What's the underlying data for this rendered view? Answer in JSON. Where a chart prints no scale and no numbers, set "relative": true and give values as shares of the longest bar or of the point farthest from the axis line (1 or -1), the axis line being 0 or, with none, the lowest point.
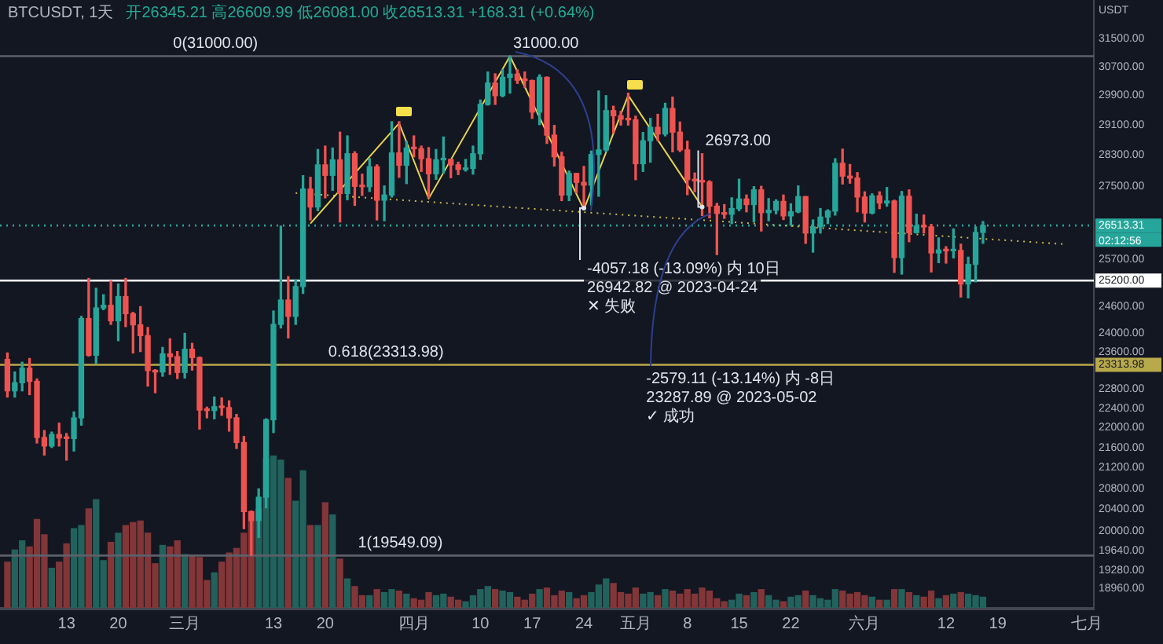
{
  "chart_data": [
    {
      "type": "candlestick",
      "title": "BTCUSDT, 1天",
      "subtitle": "开26345.21 高26609.99 低26081.00 收26513.31 +168.31 (+0.64%)",
      "ylabel": "USDT",
      "log": true,
      "x": [
        "2023-02-05",
        "2023-02-06",
        "2023-02-07",
        "2023-02-08",
        "2023-02-09",
        "2023-02-10",
        "2023-02-11",
        "2023-02-12",
        "2023-02-13",
        "2023-02-14",
        "2023-02-15",
        "2023-02-16",
        "2023-02-17",
        "2023-02-18",
        "2023-02-19",
        "2023-02-20",
        "2023-02-21",
        "2023-02-22",
        "2023-02-23",
        "2023-02-24",
        "2023-02-25",
        "2023-02-26",
        "2023-02-27",
        "2023-02-28",
        "2023-03-01",
        "2023-03-02",
        "2023-03-03",
        "2023-03-04",
        "2023-03-05",
        "2023-03-06",
        "2023-03-07",
        "2023-03-08",
        "2023-03-09",
        "2023-03-10",
        "2023-03-11",
        "2023-03-12",
        "2023-03-13",
        "2023-03-14",
        "2023-03-15",
        "2023-03-16",
        "2023-03-17",
        "2023-03-18",
        "2023-03-19",
        "2023-03-20",
        "2023-03-21",
        "2023-03-22",
        "2023-03-23",
        "2023-03-24",
        "2023-03-25",
        "2023-03-26",
        "2023-03-27",
        "2023-03-28",
        "2023-03-29",
        "2023-03-30",
        "2023-03-31",
        "2023-04-01",
        "2023-04-02",
        "2023-04-03",
        "2023-04-04",
        "2023-04-05",
        "2023-04-06",
        "2023-04-07",
        "2023-04-08",
        "2023-04-09",
        "2023-04-10",
        "2023-04-11",
        "2023-04-12",
        "2023-04-13",
        "2023-04-14",
        "2023-04-15",
        "2023-04-16",
        "2023-04-17",
        "2023-04-18",
        "2023-04-19",
        "2023-04-20",
        "2023-04-21",
        "2023-04-22",
        "2023-04-23",
        "2023-04-24",
        "2023-04-25",
        "2023-04-26",
        "2023-04-27",
        "2023-04-28",
        "2023-04-29",
        "2023-04-30",
        "2023-05-01",
        "2023-05-02",
        "2023-05-03",
        "2023-05-04",
        "2023-05-05",
        "2023-05-06",
        "2023-05-07",
        "2023-05-08",
        "2023-05-09",
        "2023-05-10",
        "2023-05-11",
        "2023-05-12",
        "2023-05-13",
        "2023-05-14",
        "2023-05-15",
        "2023-05-16",
        "2023-05-17",
        "2023-05-18",
        "2023-05-19",
        "2023-05-20",
        "2023-05-21",
        "2023-05-22",
        "2023-05-23",
        "2023-05-24",
        "2023-05-25",
        "2023-05-26",
        "2023-05-27",
        "2023-05-28",
        "2023-05-29",
        "2023-05-30",
        "2023-05-31",
        "2023-06-01",
        "2023-06-02",
        "2023-06-03",
        "2023-06-04",
        "2023-06-05",
        "2023-06-06",
        "2023-06-07",
        "2023-06-08",
        "2023-06-09",
        "2023-06-10",
        "2023-06-11",
        "2023-06-12",
        "2023-06-13",
        "2023-06-14",
        "2023-06-15",
        "2023-06-16",
        "2023-06-17"
      ],
      "ohlc": [
        [
          23430,
          23570,
          22630,
          22760
        ],
        [
          22760,
          23160,
          22630,
          22930
        ],
        [
          22930,
          23370,
          22760,
          23240
        ],
        [
          23240,
          23450,
          22680,
          22960
        ],
        [
          22960,
          23010,
          21690,
          21800
        ],
        [
          21800,
          21940,
          21450,
          21630
        ],
        [
          21630,
          21910,
          21600,
          21860
        ],
        [
          21860,
          22090,
          21630,
          21790
        ],
        [
          21790,
          21880,
          21350,
          21780
        ],
        [
          21780,
          22320,
          21530,
          22200
        ],
        [
          22200,
          24380,
          22050,
          24330
        ],
        [
          24330,
          25250,
          23500,
          23520
        ],
        [
          23520,
          25020,
          23340,
          24570
        ],
        [
          24570,
          24870,
          24530,
          24630
        ],
        [
          24630,
          25190,
          24200,
          24280
        ],
        [
          24280,
          25120,
          23840,
          24830
        ],
        [
          24830,
          25250,
          24150,
          24440
        ],
        [
          24440,
          24470,
          23570,
          24190
        ],
        [
          24190,
          24600,
          23600,
          23950
        ],
        [
          23950,
          24130,
          22860,
          23190
        ],
        [
          23190,
          23210,
          22720,
          23160
        ],
        [
          23160,
          23690,
          23070,
          23550
        ],
        [
          23550,
          23880,
          23110,
          23490
        ],
        [
          23490,
          23600,
          23020,
          23150
        ],
        [
          23150,
          24000,
          23030,
          23650
        ],
        [
          23650,
          23780,
          23200,
          23470
        ],
        [
          23470,
          23480,
          21970,
          22360
        ],
        [
          22360,
          22420,
          22200,
          22350
        ],
        [
          22350,
          22630,
          22180,
          22430
        ],
        [
          22430,
          22610,
          22250,
          22410
        ],
        [
          22410,
          22550,
          21930,
          22200
        ],
        [
          22200,
          22270,
          21580,
          21700
        ],
        [
          21700,
          21820,
          20040,
          20360
        ],
        [
          20360,
          20370,
          19549.09,
          20190
        ],
        [
          20190,
          20790,
          19880,
          20630
        ],
        [
          20630,
          22180,
          20430,
          22160
        ],
        [
          22160,
          24500,
          21900,
          24200
        ],
        [
          24200,
          26500,
          24120,
          24750
        ],
        [
          24750,
          25290,
          23900,
          24380
        ],
        [
          24380,
          25220,
          24200,
          25060
        ],
        [
          25060,
          27760,
          24900,
          27420
        ],
        [
          27420,
          27720,
          26650,
          26970
        ],
        [
          26970,
          28440,
          26880,
          28040
        ],
        [
          28040,
          28530,
          27200,
          27770
        ],
        [
          27770,
          28480,
          27390,
          28170
        ],
        [
          28170,
          28900,
          26600,
          27310
        ],
        [
          27310,
          28800,
          27150,
          28330
        ],
        [
          28330,
          28380,
          27010,
          27490
        ],
        [
          27490,
          27800,
          27260,
          27480
        ],
        [
          27480,
          28200,
          27360,
          27990
        ],
        [
          27990,
          28040,
          26650,
          27140
        ],
        [
          27140,
          27500,
          26630,
          27270
        ],
        [
          27270,
          29180,
          27220,
          28350
        ],
        [
          28350,
          29180,
          27720,
          28030
        ],
        [
          28030,
          28650,
          27560,
          28480
        ],
        [
          28480,
          28800,
          28250,
          28460
        ],
        [
          28460,
          28530,
          27870,
          28200
        ],
        [
          28200,
          28490,
          27200,
          27810
        ],
        [
          27810,
          28440,
          27670,
          28170
        ],
        [
          28170,
          28770,
          27830,
          28180
        ],
        [
          28180,
          28190,
          27710,
          28040
        ],
        [
          28040,
          28110,
          27790,
          27920
        ],
        [
          27920,
          28180,
          27880,
          27950
        ],
        [
          27950,
          28530,
          27800,
          28330
        ],
        [
          28330,
          29770,
          28180,
          29650
        ],
        [
          29650,
          30550,
          29630,
          30240
        ],
        [
          30240,
          30500,
          29650,
          29890
        ],
        [
          29890,
          30620,
          29860,
          30400
        ],
        [
          30400,
          31000,
          29960,
          30490
        ],
        [
          30490,
          30610,
          30230,
          30320
        ],
        [
          30320,
          30550,
          30120,
          30310
        ],
        [
          30310,
          30320,
          29270,
          29440
        ],
        [
          29440,
          30470,
          29100,
          30400
        ],
        [
          30400,
          30410,
          28600,
          28820
        ],
        [
          28820,
          29080,
          28010,
          28250
        ],
        [
          28250,
          28370,
          27130,
          27270
        ],
        [
          27270,
          27880,
          27130,
          27820
        ],
        [
          27820,
          27820,
          27330,
          27590
        ],
        [
          27590,
          28000,
          26942.82,
          27520
        ],
        [
          27520,
          28400,
          27020,
          28310
        ],
        [
          28310,
          30020,
          27240,
          28430
        ],
        [
          28430,
          29890,
          28380,
          29480
        ],
        [
          29480,
          29600,
          28880,
          29340
        ],
        [
          29340,
          29460,
          29090,
          29250
        ],
        [
          29250,
          29960,
          29090,
          29230
        ],
        [
          29230,
          29330,
          27660,
          28070
        ],
        [
          28070,
          28890,
          27870,
          28670
        ],
        [
          28670,
          29270,
          28110,
          29030
        ],
        [
          29030,
          29380,
          28670,
          28850
        ],
        [
          28850,
          29680,
          28800,
          29540
        ],
        [
          29540,
          29850,
          28380,
          28900
        ],
        [
          28900,
          29170,
          28390,
          28430
        ],
        [
          28430,
          28660,
          27280,
          27660
        ],
        [
          27660,
          27830,
          27350,
          27630
        ],
        [
          27630,
          28330,
          26760,
          27600
        ],
        [
          27600,
          27630,
          26700,
          26990
        ],
        [
          26990,
          27060,
          25810,
          26810
        ],
        [
          26810,
          27030,
          26690,
          26790
        ],
        [
          26790,
          27200,
          26560,
          26930
        ],
        [
          26930,
          27670,
          26880,
          27170
        ],
        [
          27170,
          27270,
          26850,
          27030
        ],
        [
          27030,
          27480,
          26600,
          27400
        ],
        [
          27400,
          27490,
          26380,
          26830
        ],
        [
          26830,
          27180,
          26630,
          26890
        ],
        [
          26890,
          27150,
          26800,
          27110
        ],
        [
          27110,
          27270,
          26660,
          26750
        ],
        [
          26750,
          27050,
          26520,
          26850
        ],
        [
          26850,
          27500,
          26830,
          27230
        ],
        [
          27230,
          27230,
          26080,
          26330
        ],
        [
          26330,
          26650,
          25870,
          26480
        ],
        [
          26480,
          26930,
          26330,
          26720
        ],
        [
          26720,
          26900,
          26560,
          26870
        ],
        [
          26870,
          28200,
          26770,
          28080
        ],
        [
          28080,
          28450,
          27550,
          27750
        ],
        [
          27750,
          28050,
          27570,
          27700
        ],
        [
          27700,
          27840,
          26850,
          27220
        ],
        [
          27220,
          27350,
          26600,
          26820
        ],
        [
          26820,
          27300,
          26800,
          27250
        ],
        [
          27250,
          27350,
          26930,
          27070
        ],
        [
          27070,
          27460,
          26990,
          27120
        ],
        [
          27120,
          27140,
          25390,
          25740
        ],
        [
          25740,
          27360,
          25350,
          27240
        ],
        [
          27240,
          27400,
          26120,
          26340
        ],
        [
          26340,
          26790,
          26330,
          26500
        ],
        [
          26500,
          26770,
          26330,
          26480
        ],
        [
          26480,
          26540,
          25400,
          25850
        ],
        [
          25850,
          26210,
          25620,
          25920
        ],
        [
          25920,
          26000,
          25610,
          25900
        ],
        [
          25900,
          26430,
          25730,
          25910
        ],
        [
          25910,
          26060,
          24820,
          25120
        ],
        [
          25120,
          25750,
          24800,
          25580
        ],
        [
          25580,
          26480,
          25170,
          26345.21
        ],
        [
          26345.21,
          26609.99,
          26081,
          26513.31
        ]
      ],
      "colors": [
        "#ef5350",
        "#26a69a",
        "#26a69a",
        "#ef5350",
        "#ef5350",
        "#ef5350",
        "#26a69a",
        "#ef5350",
        "#ef5350",
        "#26a69a",
        "#26a69a",
        "#ef5350",
        "#26a69a",
        "#26a69a",
        "#ef5350",
        "#26a69a",
        "#ef5350",
        "#ef5350",
        "#ef5350",
        "#ef5350",
        "#ef5350",
        "#26a69a",
        "#ef5350",
        "#ef5350",
        "#26a69a",
        "#ef5350",
        "#ef5350",
        "#ef5350",
        "#26a69a",
        "#ef5350",
        "#ef5350",
        "#ef5350",
        "#ef5350",
        "#ef5350",
        "#26a69a",
        "#26a69a",
        "#26a69a",
        "#26a69a",
        "#ef5350",
        "#26a69a",
        "#26a69a",
        "#ef5350",
        "#26a69a",
        "#ef5350",
        "#26a69a",
        "#ef5350",
        "#26a69a",
        "#ef5350",
        "#ef5350",
        "#26a69a",
        "#ef5350",
        "#26a69a",
        "#26a69a",
        "#ef5350",
        "#26a69a",
        "#ef5350",
        "#ef5350",
        "#ef5350",
        "#26a69a",
        "#26a69a",
        "#ef5350",
        "#ef5350",
        "#26a69a",
        "#26a69a",
        "#26a69a",
        "#26a69a",
        "#ef5350",
        "#26a69a",
        "#26a69a",
        "#ef5350",
        "#ef5350",
        "#ef5350",
        "#26a69a",
        "#ef5350",
        "#ef5350",
        "#ef5350",
        "#26a69a",
        "#ef5350",
        "#ef5350",
        "#26a69a",
        "#26a69a",
        "#26a69a",
        "#ef5350",
        "#ef5350",
        "#ef5350",
        "#ef5350",
        "#26a69a",
        "#26a69a",
        "#ef5350",
        "#26a69a",
        "#ef5350",
        "#ef5350",
        "#ef5350",
        "#ef5350",
        "#ef5350",
        "#ef5350",
        "#ef5350",
        "#ef5350",
        "#26a69a",
        "#26a69a",
        "#ef5350",
        "#26a69a",
        "#ef5350",
        "#26a69a",
        "#26a69a",
        "#ef5350",
        "#26a69a",
        "#26a69a",
        "#ef5350",
        "#26a69a",
        "#26a69a",
        "#26a69a",
        "#26a69a",
        "#ef5350",
        "#ef5350",
        "#ef5350",
        "#ef5350",
        "#26a69a",
        "#ef5350",
        "#26a69a",
        "#ef5350",
        "#26a69a",
        "#ef5350",
        "#26a69a",
        "#ef5350",
        "#ef5350",
        "#26a69a",
        "#ef5350",
        "#26a69a",
        "#ef5350",
        "#26a69a",
        "#26a69a",
        "#26a69a"
      ],
      "series": [
        {
          "type": "line",
          "color": "#e8d44d",
          "x": [
            "2023-03-18",
            "2023-03-30",
            "2023-04-03",
            "2023-04-14",
            "2023-04-24",
            "2023-04-30",
            "2023-05-10"
          ],
          "values": [
            26560,
            29140,
            27180,
            31000,
            26910,
            29900,
            26973
          ]
        },
        {
          "type": "line",
          "color": "#c9b84a",
          "line_style": "dotted",
          "x": [
            "2023-03-16",
            "2023-06-28"
          ],
          "values": [
            27320,
            26060
          ]
        }
      ],
      "xlim": [
        "2023-02-04",
        "2023-07-02"
      ],
      "xticks": [
        {
          "value": "2023-02-13",
          "label": "13"
        },
        {
          "value": "2023-02-20",
          "label": "20"
        },
        {
          "value": "2023-03-01",
          "label": "三月"
        },
        {
          "value": "2023-03-13",
          "label": "13"
        },
        {
          "value": "2023-03-20",
          "label": "20"
        },
        {
          "value": "2023-04-01",
          "label": "四月"
        },
        {
          "value": "2023-04-10",
          "label": "10"
        },
        {
          "value": "2023-04-17",
          "label": "17"
        },
        {
          "value": "2023-04-24",
          "label": "24"
        },
        {
          "value": "2023-05-01",
          "label": "五月"
        },
        {
          "value": "2023-05-08",
          "label": "8"
        },
        {
          "value": "2023-05-15",
          "label": "15"
        },
        {
          "value": "2023-05-22",
          "label": "22"
        },
        {
          "value": "2023-06-01",
          "label": "六月"
        },
        {
          "value": "2023-06-12",
          "label": "12"
        },
        {
          "value": "2023-06-19",
          "label": "19"
        },
        {
          "value": "2023-07-01",
          "label": "七月"
        }
      ],
      "ylim": [
        18600,
        32650
      ],
      "yticks": [
        {
          "value": 31500,
          "label": "31500.00"
        },
        {
          "value": 30700,
          "label": "30700.00"
        },
        {
          "value": 29900,
          "label": "29900.00"
        },
        {
          "value": 29100,
          "label": "29100.00"
        },
        {
          "value": 28300,
          "label": "28300.00"
        },
        {
          "value": 27500,
          "label": "27500.00"
        },
        {
          "value": 25700,
          "label": "25700.00"
        },
        {
          "value": 24600,
          "label": "24600.00"
        },
        {
          "value": 24000,
          "label": "24000.00"
        },
        {
          "value": 23600,
          "label": "23600.00"
        },
        {
          "value": 22800,
          "label": "22800.00"
        },
        {
          "value": 22400,
          "label": "22400.00"
        },
        {
          "value": 22000,
          "label": "22000.00"
        },
        {
          "value": 21600,
          "label": "21600.00"
        },
        {
          "value": 21200,
          "label": "21200.00"
        },
        {
          "value": 20800,
          "label": "20800.00"
        },
        {
          "value": 20400,
          "label": "20400.00"
        },
        {
          "value": 20000,
          "label": "20000.00"
        },
        {
          "value": 19640,
          "label": "19640.00"
        },
        {
          "value": 19280,
          "label": "19280.00"
        },
        {
          "value": 18960,
          "label": "18960.00"
        }
      ],
      "ref_lines": [
        {
          "axis": "y",
          "value": 26513.31,
          "label": "26513.31",
          "color": "#26a69a",
          "line_style": "dotted"
        },
        {
          "axis": "y",
          "value": 31000,
          "color": "#5d606b"
        },
        {
          "axis": "y",
          "value": 25200,
          "label": "25200.00",
          "color": "#ffffff"
        },
        {
          "axis": "y",
          "value": 23313.98,
          "label": "23313.98",
          "color": "#b8a94a"
        },
        {
          "axis": "y",
          "value": 19549.09,
          "color": "#5d606b"
        }
      ],
      "annotations": [
        "02:12:56",
        {
          "text": "0(31000.00)",
          "x": "2023-02-27",
          "y": 31000
        },
        {
          "text": "0.618(23313.98)",
          "x": "2023-03-20",
          "y": 23313.98
        },
        {
          "text": "1(19549.09)",
          "x": "2023-03-24",
          "y": 19549.09
        },
        {
          "text": "31000.00",
          "x": "2023-04-14",
          "y": 31000
        },
        {
          "text": "-4057.18 (-13.09%) 内 10日\n26942.82 @ 2023-04-24\n✕ 失败",
          "x": "2023-04-24",
          "y": 26942.82
        },
        {
          "text": "26973.00",
          "x": "2023-05-10",
          "y": 26973
        },
        {
          "text": "-2579.11 (-13.14%) 内 -8日\n23287.89 @ 2023-05-02\n✓ 成功",
          "x": "2023-05-02",
          "y": 23313.98
        }
      ]
    },
    {
      "type": "bar",
      "relative": true,
      "tick_labels": false,
      "xlim": [
        "2023-02-04",
        "2023-07-02"
      ],
      "x": [
        "2023-02-05",
        "2023-02-06",
        "2023-02-07",
        "2023-02-08",
        "2023-02-09",
        "2023-02-10",
        "2023-02-11",
        "2023-02-12",
        "2023-02-13",
        "2023-02-14",
        "2023-02-15",
        "2023-02-16",
        "2023-02-17",
        "2023-02-18",
        "2023-02-19",
        "2023-02-20",
        "2023-02-21",
        "2023-02-22",
        "2023-02-23",
        "2023-02-24",
        "2023-02-25",
        "2023-02-26",
        "2023-02-27",
        "2023-02-28",
        "2023-03-01",
        "2023-03-02",
        "2023-03-03",
        "2023-03-04",
        "2023-03-05",
        "2023-03-06",
        "2023-03-07",
        "2023-03-08",
        "2023-03-09",
        "2023-03-10",
        "2023-03-11",
        "2023-03-12",
        "2023-03-13",
        "2023-03-14",
        "2023-03-15",
        "2023-03-16",
        "2023-03-17",
        "2023-03-18",
        "2023-03-19",
        "2023-03-20",
        "2023-03-21",
        "2023-03-22",
        "2023-03-23",
        "2023-03-24",
        "2023-03-25",
        "2023-03-26",
        "2023-03-27",
        "2023-03-28",
        "2023-03-29",
        "2023-03-30",
        "2023-03-31",
        "2023-04-01",
        "2023-04-02",
        "2023-04-03",
        "2023-04-04",
        "2023-04-05",
        "2023-04-06",
        "2023-04-07",
        "2023-04-08",
        "2023-04-09",
        "2023-04-10",
        "2023-04-11",
        "2023-04-12",
        "2023-04-13",
        "2023-04-14",
        "2023-04-15",
        "2023-04-16",
        "2023-04-17",
        "2023-04-18",
        "2023-04-19",
        "2023-04-20",
        "2023-04-21",
        "2023-04-22",
        "2023-04-23",
        "2023-04-24",
        "2023-04-25",
        "2023-04-26",
        "2023-04-27",
        "2023-04-28",
        "2023-04-29",
        "2023-04-30",
        "2023-05-01",
        "2023-05-02",
        "2023-05-03",
        "2023-05-04",
        "2023-05-05",
        "2023-05-06",
        "2023-05-07",
        "2023-05-08",
        "2023-05-09",
        "2023-05-10",
        "2023-05-11",
        "2023-05-12",
        "2023-05-13",
        "2023-05-14",
        "2023-05-15",
        "2023-05-16",
        "2023-05-17",
        "2023-05-18",
        "2023-05-19",
        "2023-05-20",
        "2023-05-21",
        "2023-05-22",
        "2023-05-23",
        "2023-05-24",
        "2023-05-25",
        "2023-05-26",
        "2023-05-27",
        "2023-05-28",
        "2023-05-29",
        "2023-05-30",
        "2023-05-31",
        "2023-06-01",
        "2023-06-02",
        "2023-06-03",
        "2023-06-04",
        "2023-06-05",
        "2023-06-06",
        "2023-06-07",
        "2023-06-08",
        "2023-06-09",
        "2023-06-10",
        "2023-06-11",
        "2023-06-12",
        "2023-06-13",
        "2023-06-14",
        "2023-06-15",
        "2023-06-16",
        "2023-06-17"
      ],
      "values": [
        0.3,
        0.38,
        0.44,
        0.4,
        0.58,
        0.48,
        0.26,
        0.3,
        0.42,
        0.52,
        0.54,
        0.65,
        0.71,
        0.31,
        0.43,
        0.49,
        0.54,
        0.56,
        0.57,
        0.49,
        0.29,
        0.41,
        0.4,
        0.44,
        0.35,
        0.34,
        0.33,
        0.18,
        0.23,
        0.3,
        0.36,
        0.39,
        0.49,
        0.63,
        0.65,
        0.98,
        1,
        0.97,
        0.85,
        0.7,
        0.9,
        0.54,
        0.54,
        0.69,
        0.61,
        0.32,
        0.19,
        0.14,
        0.08,
        0.08,
        0.12,
        0.1,
        0.12,
        0.11,
        0.09,
        0.06,
        0.05,
        0.1,
        0.08,
        0.09,
        0.07,
        0.05,
        0.04,
        0.08,
        0.12,
        0.14,
        0.12,
        0.11,
        0.1,
        0.07,
        0.05,
        0.09,
        0.12,
        0.13,
        0.08,
        0.11,
        0.1,
        0.06,
        0.08,
        0.1,
        0.15,
        0.19,
        0.16,
        0.1,
        0.09,
        0.13,
        0.09,
        0.1,
        0.08,
        0.12,
        0.11,
        0.09,
        0.12,
        0.09,
        0.13,
        0.11,
        0.06,
        0.04,
        0.05,
        0.09,
        0.08,
        0.1,
        0.12,
        0.08,
        0.05,
        0.04,
        0.07,
        0.08,
        0.11,
        0.08,
        0.06,
        0.05,
        0.12,
        0.11,
        0.09,
        0.1,
        0.08,
        0.07,
        0.05,
        0.05,
        0.12,
        0.12,
        0.1,
        0.08,
        0.07,
        0.11,
        0.06,
        0.08,
        0.09,
        0.1,
        0.09,
        0.08,
        0.07
      ],
      "colors": [
        "#833638",
        "#22625c",
        "#22625c",
        "#833638",
        "#833638",
        "#833638",
        "#22625c",
        "#833638",
        "#833638",
        "#22625c",
        "#22625c",
        "#833638",
        "#22625c",
        "#22625c",
        "#833638",
        "#22625c",
        "#833638",
        "#833638",
        "#833638",
        "#833638",
        "#833638",
        "#22625c",
        "#833638",
        "#833638",
        "#22625c",
        "#833638",
        "#833638",
        "#833638",
        "#22625c",
        "#833638",
        "#833638",
        "#833638",
        "#833638",
        "#833638",
        "#22625c",
        "#22625c",
        "#22625c",
        "#22625c",
        "#833638",
        "#22625c",
        "#22625c",
        "#833638",
        "#22625c",
        "#833638",
        "#22625c",
        "#833638",
        "#22625c",
        "#833638",
        "#833638",
        "#22625c",
        "#833638",
        "#22625c",
        "#22625c",
        "#833638",
        "#22625c",
        "#833638",
        "#833638",
        "#833638",
        "#22625c",
        "#22625c",
        "#833638",
        "#833638",
        "#22625c",
        "#22625c",
        "#22625c",
        "#22625c",
        "#833638",
        "#22625c",
        "#22625c",
        "#833638",
        "#833638",
        "#833638",
        "#22625c",
        "#833638",
        "#833638",
        "#833638",
        "#22625c",
        "#833638",
        "#833638",
        "#22625c",
        "#22625c",
        "#22625c",
        "#833638",
        "#833638",
        "#833638",
        "#833638",
        "#22625c",
        "#22625c",
        "#833638",
        "#22625c",
        "#833638",
        "#833638",
        "#833638",
        "#833638",
        "#833638",
        "#833638",
        "#833638",
        "#833638",
        "#22625c",
        "#22625c",
        "#833638",
        "#22625c",
        "#833638",
        "#22625c",
        "#22625c",
        "#833638",
        "#22625c",
        "#22625c",
        "#833638",
        "#22625c",
        "#22625c",
        "#22625c",
        "#22625c",
        "#833638",
        "#833638",
        "#833638",
        "#833638",
        "#22625c",
        "#833638",
        "#22625c",
        "#833638",
        "#22625c",
        "#833638",
        "#22625c",
        "#833638",
        "#833638",
        "#22625c",
        "#833638",
        "#22625c",
        "#833638",
        "#22625c",
        "#22625c",
        "#22625c"
      ]
    }
  ]
}
